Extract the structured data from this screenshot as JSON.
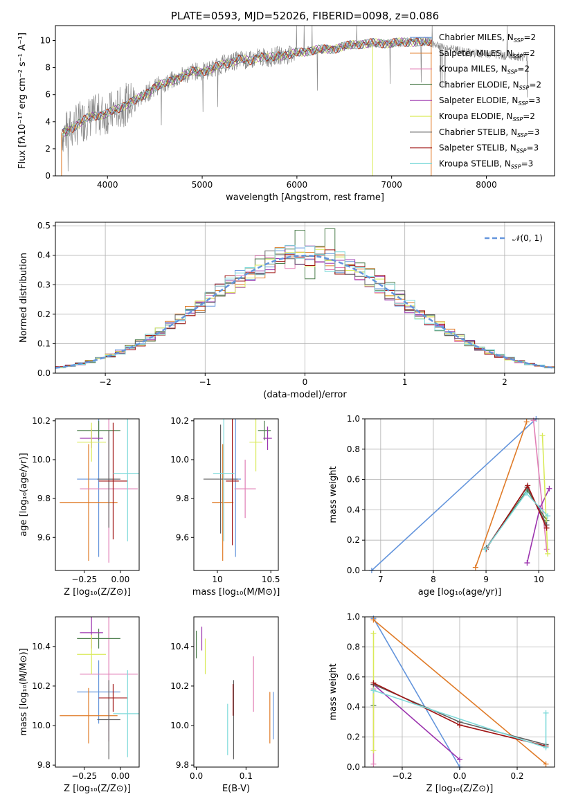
{
  "colors": {
    "blue": "#6495dc",
    "orange": "#e07b28",
    "pink": "#e17fb6",
    "darkgreen": "#4c7d4c",
    "purple": "#9b33ae",
    "yellow": "#d9ea58",
    "gray": "#606060",
    "red": "#a01515",
    "cyan": "#7fdada",
    "grid": "#b0b0b0",
    "spectrum": "#888888"
  },
  "chart_data": [
    {
      "id": "spectrum",
      "type": "line",
      "title": "PLATE=0593, MJD=52026, FIBERID=0098, z=0.086",
      "xlabel": "wavelength [Angstrom, rest frame]",
      "ylabel": "Flux [fλ10⁻¹⁷ erg cm⁻² s⁻¹ A⁻¹]",
      "xlim": [
        3450,
        8720
      ],
      "ylim": [
        0,
        11.1
      ],
      "xticks": [
        4000,
        5000,
        6000,
        7000,
        8000
      ],
      "yticks": [
        0,
        2,
        4,
        6,
        8,
        10
      ],
      "grid": false,
      "legend_position": "right",
      "data_x": [
        3520,
        3600,
        3700,
        3800,
        3900,
        4000,
        4100,
        4200,
        4300,
        4400,
        4500,
        4600,
        4700,
        4800,
        4900,
        5000,
        5100,
        5200,
        5300,
        5400,
        5500,
        5600,
        5700,
        5800,
        5900,
        6000,
        6200,
        6400,
        6600,
        6800,
        7000,
        7200,
        7400,
        7600,
        7800,
        8000,
        8200,
        8400
      ],
      "data_y": [
        3.1,
        3.4,
        3.9,
        4.3,
        4.5,
        4.6,
        4.9,
        5.3,
        5.6,
        6.0,
        6.6,
        6.8,
        7.1,
        7.4,
        7.7,
        7.7,
        7.9,
        8.2,
        8.4,
        8.6,
        8.5,
        8.8,
        8.7,
        8.9,
        8.9,
        9.1,
        9.3,
        9.4,
        9.7,
        9.8,
        9.8,
        9.9,
        9.9,
        9.4,
        9.1,
        9.0,
        8.9,
        8.8
      ],
      "legend": [
        {
          "label": "Chabrier MILES, N",
          "sub": "SSP",
          "suffix": "=2",
          "color": "blue"
        },
        {
          "label": "Salpeter MILES, N",
          "sub": "SSP",
          "suffix": "=2",
          "color": "orange"
        },
        {
          "label": "Kroupa MILES, N",
          "sub": "SSP",
          "suffix": "=2",
          "color": "pink"
        },
        {
          "label": "Chabrier ELODIE, N",
          "sub": "SSP",
          "suffix": "=2",
          "color": "darkgreen"
        },
        {
          "label": "Salpeter ELODIE, N",
          "sub": "SSP",
          "suffix": "=3",
          "color": "purple"
        },
        {
          "label": "Kroupa ELODIE, N",
          "sub": "SSP",
          "suffix": "=2",
          "color": "yellow"
        },
        {
          "label": "Chabrier STELIB, N",
          "sub": "SSP",
          "suffix": "=3",
          "color": "gray"
        },
        {
          "label": "Salpeter STELIB, N",
          "sub": "SSP",
          "suffix": "=3",
          "color": "red"
        },
        {
          "label": "Kroupa STELIB, N",
          "sub": "SSP",
          "suffix": "=3",
          "color": "cyan"
        }
      ]
    },
    {
      "id": "residuals",
      "type": "line",
      "xlabel": "(data-model)/error",
      "ylabel": "Normed distribution",
      "xlim": [
        -2.5,
        2.5
      ],
      "ylim": [
        0,
        0.512
      ],
      "xticks": [
        -2,
        -1,
        0,
        1,
        2
      ],
      "xticklabels": [
        "−2",
        "−1",
        "0",
        "1",
        "2"
      ],
      "yticks": [
        0.0,
        0.1,
        0.2,
        0.3,
        0.4,
        0.5
      ],
      "grid": true,
      "legend_position": "top-right",
      "reference_label": "𝒩(0, 1)",
      "hist_bins": [
        -2.5,
        -2.4,
        -2.3,
        -2.2,
        -2.1,
        -2.0,
        -1.9,
        -1.8,
        -1.7,
        -1.6,
        -1.5,
        -1.4,
        -1.3,
        -1.2,
        -1.1,
        -1.0,
        -0.9,
        -0.8,
        -0.7,
        -0.6,
        -0.5,
        -0.4,
        -0.3,
        -0.2,
        -0.1,
        0.0,
        0.1,
        0.2,
        0.3,
        0.4,
        0.5,
        0.6,
        0.7,
        0.8,
        0.9,
        1.0,
        1.1,
        1.2,
        1.3,
        1.4,
        1.5,
        1.6,
        1.7,
        1.8,
        1.9,
        2.0,
        2.1,
        2.2,
        2.3,
        2.4
      ]
    },
    {
      "id": "age-vs-Z",
      "type": "scatter",
      "xlabel": "Z [log₁₀(Z/Z⊙)]",
      "ylabel": "age  [log₁₀(age/yr)]",
      "xlim": [
        -0.45,
        0.13
      ],
      "ylim": [
        9.43,
        10.21
      ],
      "xticks": [
        -0.25,
        0.0
      ],
      "xticklabels": [
        "−0.25",
        "0.00"
      ],
      "yticks": [
        9.6,
        9.8,
        10.0,
        10.2
      ],
      "points": [
        {
          "color": "blue",
          "x": -0.15,
          "xerr": 0.15,
          "y": 9.9,
          "yerr": 0.4
        },
        {
          "color": "orange",
          "x": -0.22,
          "xerr": 0.2,
          "y": 9.78,
          "yerr": 0.3
        },
        {
          "color": "pink",
          "x": -0.08,
          "xerr": 0.2,
          "y": 9.85,
          "yerr": 0.38
        },
        {
          "color": "darkgreen",
          "x": -0.15,
          "xerr": 0.15,
          "y": 10.15,
          "yerr": 0.05
        },
        {
          "color": "purple",
          "x": -0.2,
          "xerr": 0.08,
          "y": 10.11,
          "yerr": 0.05
        },
        {
          "color": "yellow",
          "x": -0.2,
          "xerr": 0.1,
          "y": 10.09,
          "yerr": 0.1
        },
        {
          "color": "gray",
          "x": -0.08,
          "xerr": 0.08,
          "y": 9.9,
          "yerr": 0.25
        },
        {
          "color": "red",
          "x": -0.05,
          "xerr": 0.1,
          "y": 9.89,
          "yerr": 0.3
        },
        {
          "color": "cyan",
          "x": 0.05,
          "xerr": 0.1,
          "y": 9.93,
          "yerr": 0.35
        }
      ]
    },
    {
      "id": "age-vs-mass",
      "type": "scatter",
      "xlabel": "mass [log₁₀(M/M⊙)]",
      "ylabel": "",
      "xlim": [
        9.78,
        10.57
      ],
      "ylim": [
        9.43,
        10.21
      ],
      "xticks": [
        10.0,
        10.5
      ],
      "yticks": [
        9.6,
        9.8,
        10.0,
        10.2
      ],
      "points": [
        {
          "color": "blue",
          "x": 10.17,
          "xerr": 0.05,
          "y": 9.9,
          "yerr": 0.4
        },
        {
          "color": "orange",
          "x": 10.05,
          "xerr": 0.1,
          "y": 9.78,
          "yerr": 0.3
        },
        {
          "color": "pink",
          "x": 10.26,
          "xerr": 0.1,
          "y": 9.85,
          "yerr": 0.15
        },
        {
          "color": "darkgreen",
          "x": 10.44,
          "xerr": 0.06,
          "y": 10.15,
          "yerr": 0.05
        },
        {
          "color": "purple",
          "x": 10.47,
          "xerr": 0.04,
          "y": 10.11,
          "yerr": 0.06
        },
        {
          "color": "yellow",
          "x": 10.36,
          "xerr": 0.06,
          "y": 10.09,
          "yerr": 0.15
        },
        {
          "color": "gray",
          "x": 10.03,
          "xerr": 0.16,
          "y": 9.9,
          "yerr": 0.28
        },
        {
          "color": "red",
          "x": 10.14,
          "xerr": 0.06,
          "y": 9.89,
          "yerr": 0.33
        },
        {
          "color": "cyan",
          "x": 10.06,
          "xerr": 0.1,
          "y": 9.93,
          "yerr": 0.35
        }
      ]
    },
    {
      "id": "weight-vs-age",
      "type": "line",
      "xlabel": "age  [log₁₀(age/yr)]",
      "ylabel": "mass weight",
      "xlim": [
        6.7,
        10.3
      ],
      "ylim": [
        0,
        1.0
      ],
      "xticks": [
        7,
        8,
        9,
        10
      ],
      "yticks": [
        0.0,
        0.2,
        0.4,
        0.6,
        0.8,
        1.0
      ],
      "grid": true,
      "series": [
        {
          "color": "blue",
          "x": [
            6.83,
            9.95
          ],
          "y": [
            0.0,
            1.0
          ]
        },
        {
          "color": "orange",
          "x": [
            8.8,
            9.77
          ],
          "y": [
            0.02,
            0.98
          ]
        },
        {
          "color": "pink",
          "x": [
            9.9,
            10.15
          ],
          "y": [
            0.99,
            0.14
          ]
        },
        {
          "color": "darkgreen",
          "x": [
            8.99,
            9.78,
            10.15
          ],
          "y": [
            0.14,
            0.53,
            0.33
          ]
        },
        {
          "color": "purple",
          "x": [
            9.78,
            10.02,
            10.2
          ],
          "y": [
            0.05,
            0.41,
            0.54
          ]
        },
        {
          "color": "yellow",
          "x": [
            10.07,
            10.17
          ],
          "y": [
            0.89,
            0.11
          ]
        },
        {
          "color": "gray",
          "x": [
            9.01,
            9.78,
            10.15
          ],
          "y": [
            0.15,
            0.55,
            0.3
          ]
        },
        {
          "color": "red",
          "x": [
            9.0,
            9.79,
            10.15
          ],
          "y": [
            0.14,
            0.56,
            0.28
          ]
        },
        {
          "color": "cyan",
          "x": [
            8.99,
            9.76,
            10.17
          ],
          "y": [
            0.14,
            0.51,
            0.36
          ]
        }
      ]
    },
    {
      "id": "mass-vs-Z",
      "type": "scatter",
      "xlabel": "Z [log₁₀(Z/Z⊙)]",
      "ylabel": "mass [log₁₀(M/M⊙)]",
      "xlim": [
        -0.45,
        0.13
      ],
      "ylim": [
        9.79,
        10.55
      ],
      "xticks": [
        -0.25,
        0.0
      ],
      "xticklabels": [
        "−0.25",
        "0.00"
      ],
      "yticks": [
        9.8,
        10.0,
        10.2,
        10.4
      ],
      "points": [
        {
          "color": "blue",
          "x": -0.15,
          "xerr": 0.15,
          "y": 10.17,
          "yerr": 0.16
        },
        {
          "color": "orange",
          "x": -0.22,
          "xerr": 0.2,
          "y": 10.05,
          "yerr": 0.14
        },
        {
          "color": "pink",
          "x": -0.08,
          "xerr": 0.2,
          "y": 10.26,
          "yerr": 0.34
        },
        {
          "color": "darkgreen",
          "x": -0.15,
          "xerr": 0.15,
          "y": 10.44,
          "yerr": 0.05
        },
        {
          "color": "purple",
          "x": -0.2,
          "xerr": 0.08,
          "y": 10.47,
          "yerr": 0.08
        },
        {
          "color": "yellow",
          "x": -0.2,
          "xerr": 0.1,
          "y": 10.36,
          "yerr": 0.1
        },
        {
          "color": "gray",
          "x": -0.08,
          "xerr": 0.08,
          "y": 10.03,
          "yerr": 0.2
        },
        {
          "color": "red",
          "x": -0.05,
          "xerr": 0.1,
          "y": 10.14,
          "yerr": 0.07
        },
        {
          "color": "cyan",
          "x": 0.05,
          "xerr": 0.1,
          "y": 10.06,
          "yerr": 0.22
        }
      ]
    },
    {
      "id": "mass-vs-EBV",
      "type": "scatter",
      "xlabel": "E(B-V)",
      "ylabel": "",
      "xlim": [
        -0.005,
        0.165
      ],
      "ylim": [
        9.79,
        10.55
      ],
      "xticks": [
        0.0,
        0.1
      ],
      "xticklabels": [
        "0.0",
        "0.1"
      ],
      "yticks": [
        9.8,
        10.0,
        10.2,
        10.4
      ],
      "points": [
        {
          "color": "blue",
          "x": 0.155,
          "y": 10.05,
          "yerr": 0.12
        },
        {
          "color": "orange",
          "x": 0.148,
          "y": 10.04,
          "yerr": 0.13
        },
        {
          "color": "pink",
          "x": 0.115,
          "y": 10.21,
          "yerr": 0.14
        },
        {
          "color": "darkgreen",
          "x": 0.0,
          "y": 10.41,
          "yerr": 0.07
        },
        {
          "color": "purple",
          "x": 0.011,
          "y": 10.44,
          "yerr": 0.06
        },
        {
          "color": "yellow",
          "x": 0.018,
          "y": 10.35,
          "yerr": 0.09
        },
        {
          "color": "gray",
          "x": 0.075,
          "y": 10.03,
          "yerr": 0.2
        },
        {
          "color": "red",
          "x": 0.074,
          "y": 10.13,
          "yerr": 0.08
        },
        {
          "color": "cyan",
          "x": 0.063,
          "y": 9.98,
          "yerr": 0.13
        }
      ]
    },
    {
      "id": "weight-vs-Z",
      "type": "line",
      "xlabel": "Z [log₁₀(Z/Z⊙)]",
      "ylabel": "mass weight",
      "xlim": [
        -0.33,
        0.33
      ],
      "ylim": [
        0,
        1.0
      ],
      "xticks": [
        -0.2,
        0.0,
        0.2
      ],
      "xticklabels": [
        "−0.2",
        "0.0",
        "0.2"
      ],
      "yticks": [
        0.0,
        0.2,
        0.4,
        0.6,
        0.8,
        1.0
      ],
      "grid": true,
      "series": [
        {
          "color": "blue",
          "x": [
            -0.3,
            0.0
          ],
          "y": [
            0.99,
            0.0
          ]
        },
        {
          "color": "orange",
          "x": [
            -0.3,
            0.3
          ],
          "y": [
            0.98,
            0.02
          ]
        },
        {
          "color": "pink",
          "x": [
            -0.3,
            -0.3
          ],
          "y": [
            0.02,
            0.52
          ]
        },
        {
          "color": "darkgreen",
          "x": [
            -0.3,
            -0.3
          ],
          "y": [
            0.41,
            0.55
          ]
        },
        {
          "color": "purple",
          "x": [
            -0.3,
            0.0
          ],
          "y": [
            0.55,
            0.05
          ]
        },
        {
          "color": "yellow",
          "x": [
            -0.3,
            -0.3
          ],
          "y": [
            0.11,
            0.89
          ]
        },
        {
          "color": "gray",
          "x": [
            -0.3,
            0.0,
            0.3
          ],
          "y": [
            0.55,
            0.3,
            0.15
          ]
        },
        {
          "color": "red",
          "x": [
            -0.3,
            0.0,
            0.3
          ],
          "y": [
            0.56,
            0.28,
            0.14
          ]
        },
        {
          "color": "cyan",
          "x": [
            -0.3,
            0.3,
            0.3
          ],
          "y": [
            0.51,
            0.13,
            0.36
          ]
        }
      ]
    }
  ]
}
